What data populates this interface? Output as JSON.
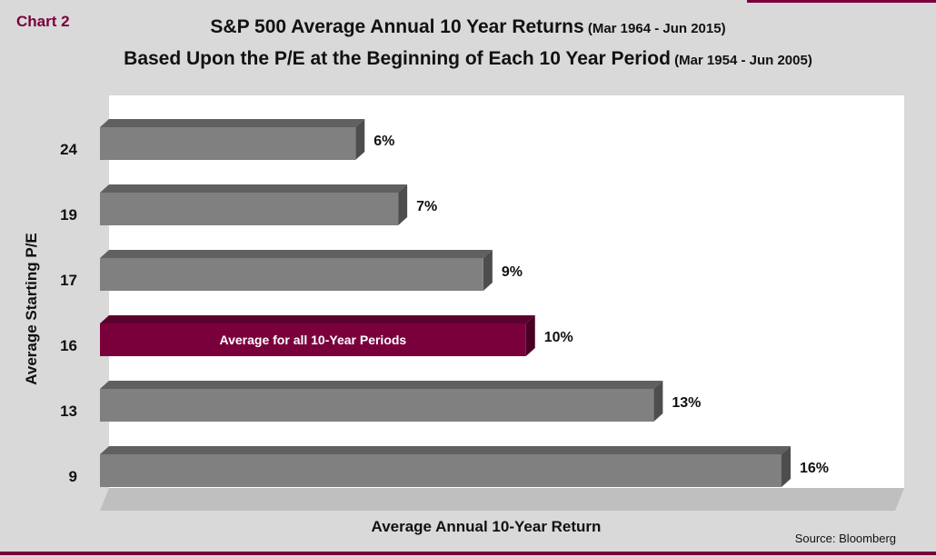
{
  "chart_label": "Chart 2",
  "title_line1_main": "S&P 500 Average Annual 10 Year Returns",
  "title_line1_sub": " (Mar 1964 - Jun 2015)",
  "title_line2_main": "Based Upon the P/E at the Beginning of Each 10 Year Period",
  "title_line2_sub": " (Mar 1954 - Jun 2005)",
  "source": "Source:  Bloomberg",
  "colors": {
    "bar": "#808080",
    "highlight": "#7a003c",
    "background": "#d9d9d9",
    "plot": "#ffffff"
  },
  "chart_data": {
    "type": "bar",
    "orientation": "horizontal",
    "xlabel": "Average Annual 10-Year Return",
    "ylabel": "Average Starting P/E",
    "categories": [
      "24",
      "19",
      "17",
      "16",
      "13",
      "9"
    ],
    "values": [
      6,
      7,
      9,
      10,
      13,
      16
    ],
    "data_labels": [
      "6%",
      "7%",
      "9%",
      "10%",
      "13%",
      "16%"
    ],
    "highlight_index": 3,
    "highlight_label": "Average for all 10-Year Periods",
    "xlim": [
      0,
      16
    ],
    "grid": false,
    "legend": "none"
  }
}
